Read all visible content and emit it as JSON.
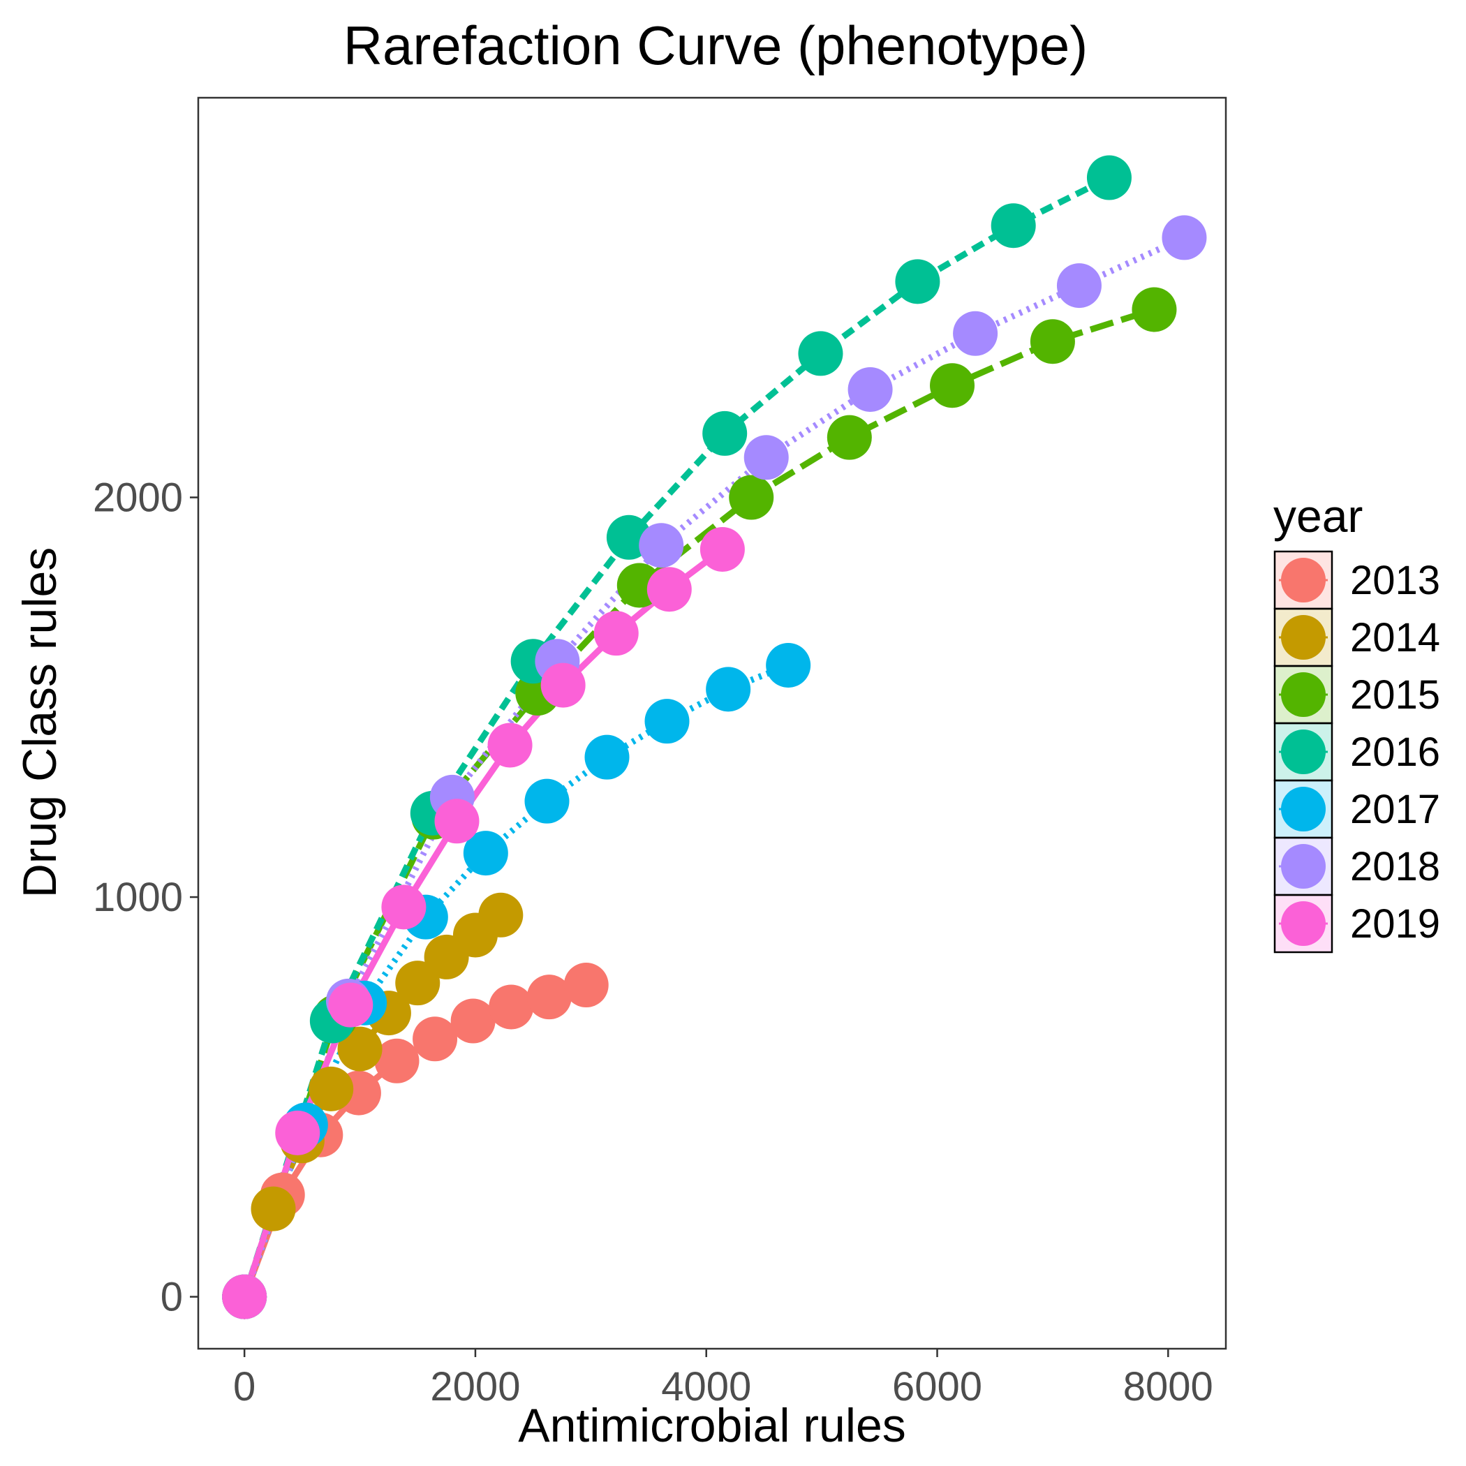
{
  "chart_data": {
    "type": "line",
    "title": "Rarefaction Curve (phenotype)",
    "xlabel": "Antimicrobial rules",
    "ylabel": "Drug Class rules",
    "xlim": [
      -400,
      8500
    ],
    "ylim": [
      -130,
      3000
    ],
    "x_ticks": [
      0,
      2000,
      4000,
      6000,
      8000
    ],
    "y_ticks": [
      0,
      1000,
      2000
    ],
    "grid": false,
    "legend_position": "right",
    "legend_title": "year",
    "series": [
      {
        "name": "2013",
        "color": "#F8766D",
        "dash": "solid",
        "x": [
          0,
          330,
          660,
          990,
          1320,
          1650,
          1980,
          2310,
          2640,
          2960
        ],
        "y": [
          0,
          255,
          405,
          510,
          590,
          645,
          690,
          725,
          750,
          780
        ]
      },
      {
        "name": "2014",
        "color": "#C49A00",
        "dash": "dashed",
        "x": [
          0,
          250,
          500,
          750,
          1000,
          1250,
          1500,
          1750,
          2000,
          2220
        ],
        "y": [
          0,
          220,
          390,
          520,
          620,
          710,
          785,
          850,
          905,
          955
        ]
      },
      {
        "name": "2015",
        "color": "#53B400",
        "dash": "longdash",
        "x": [
          0,
          790,
          1640,
          2540,
          3420,
          4390,
          5240,
          6130,
          7000,
          7880
        ],
        "y": [
          0,
          700,
          1200,
          1510,
          1780,
          2000,
          2150,
          2280,
          2390,
          2470
        ]
      },
      {
        "name": "2016",
        "color": "#00C094",
        "dash": "dashed",
        "x": [
          0,
          760,
          1630,
          2500,
          3330,
          4160,
          4990,
          5830,
          6660,
          7490
        ],
        "y": [
          0,
          690,
          1210,
          1590,
          1900,
          2160,
          2360,
          2540,
          2680,
          2800
        ]
      },
      {
        "name": "2017",
        "color": "#00B6EB",
        "dash": "dotted",
        "x": [
          0,
          530,
          1040,
          1570,
          2090,
          2620,
          3140,
          3660,
          4190,
          4710
        ],
        "y": [
          0,
          430,
          735,
          950,
          1110,
          1240,
          1350,
          1440,
          1520,
          1580
        ]
      },
      {
        "name": "2018",
        "color": "#A58AFF",
        "dash": "dotted",
        "x": [
          0,
          900,
          1800,
          2710,
          3610,
          4520,
          5420,
          6330,
          7230,
          8140
        ],
        "y": [
          0,
          740,
          1250,
          1590,
          1880,
          2100,
          2270,
          2410,
          2530,
          2650
        ]
      },
      {
        "name": "2019",
        "color": "#FB61D7",
        "dash": "solid",
        "x": [
          0,
          460,
          920,
          1380,
          1840,
          2300,
          2760,
          3220,
          3680,
          4140
        ],
        "y": [
          0,
          410,
          730,
          975,
          1190,
          1380,
          1530,
          1660,
          1770,
          1870
        ]
      }
    ]
  }
}
